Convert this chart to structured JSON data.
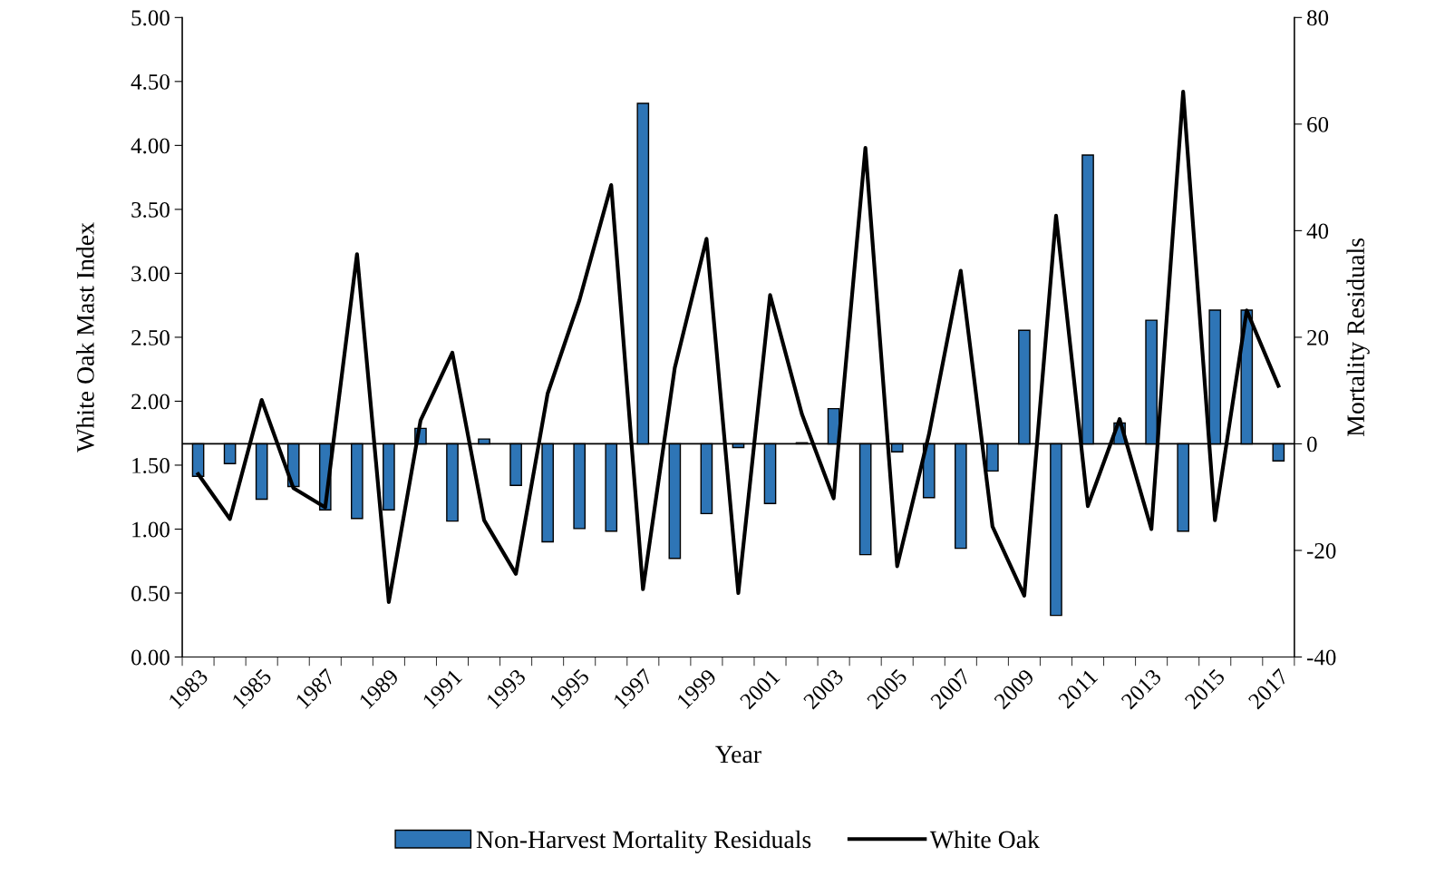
{
  "chart_data": {
    "type": "bar",
    "xlabel": "Year",
    "ylabel": "White Oak Mast Index",
    "y2label": "Mortality Residuals",
    "categories": [
      "1983",
      null,
      "1985",
      null,
      "1987",
      null,
      "1989",
      null,
      "1991",
      null,
      "1993",
      null,
      "1995",
      null,
      "1997",
      null,
      "1999",
      null,
      "2001",
      null,
      "2003",
      null,
      "2005",
      null,
      "2007",
      null,
      "2009",
      null,
      "2011",
      null,
      "2013",
      null,
      "2015",
      null,
      "2017"
    ],
    "series": [
      {
        "name": "Non-Harvest Mortality Residuals",
        "axis": "y2",
        "color": "#2e75b6",
        "values": [
          -6.1,
          -3.7,
          -10.4,
          -8.0,
          -12.4,
          -14.0,
          -12.4,
          2.9,
          -14.5,
          0.9,
          -7.8,
          -18.4,
          -15.9,
          -16.4,
          63.9,
          -21.5,
          -13.1,
          -0.7,
          -11.2,
          0.2,
          6.6,
          -20.8,
          -1.5,
          -10.1,
          -19.6,
          -5.1,
          21.3,
          -32.2,
          54.2,
          3.9,
          23.2,
          -16.4,
          25.1,
          25.1,
          -3.2
        ]
      },
      {
        "name": "White Oak",
        "type": "line",
        "color": "#000000",
        "values": [
          1.43,
          1.08,
          2.01,
          1.32,
          1.17,
          3.15,
          0.43,
          1.85,
          2.38,
          1.07,
          0.65,
          2.06,
          2.79,
          3.69,
          0.53,
          2.26,
          3.27,
          0.5,
          2.83,
          1.9,
          1.24,
          3.98,
          0.71,
          1.74,
          3.02,
          1.02,
          0.48,
          3.45,
          1.18,
          1.86,
          1.0,
          4.42,
          1.07,
          2.71,
          2.12
        ]
      }
    ],
    "ylim": [
      0,
      5
    ],
    "yticks": [
      {
        "value": 0,
        "label": "0.00"
      },
      {
        "value": 0.5,
        "label": "0.50"
      },
      {
        "value": 1,
        "label": "1.00"
      },
      {
        "value": 1.5,
        "label": "1.50"
      },
      {
        "value": 2,
        "label": "2.00"
      },
      {
        "value": 2.5,
        "label": "2.50"
      },
      {
        "value": 3,
        "label": "3.00"
      },
      {
        "value": 3.5,
        "label": "3.50"
      },
      {
        "value": 4,
        "label": "4.00"
      },
      {
        "value": 4.5,
        "label": "4.50"
      },
      {
        "value": 5,
        "label": "5.00"
      }
    ],
    "y2lim": [
      -40,
      80
    ],
    "y2ticks": [
      -40,
      -20,
      0,
      20,
      40,
      60,
      80
    ],
    "ref_lines": [
      {
        "axis": "y2",
        "value": 0,
        "color": "#000000"
      }
    ],
    "grid": false,
    "legend": "bottom",
    "marker": "none",
    "line_style": "solid"
  }
}
